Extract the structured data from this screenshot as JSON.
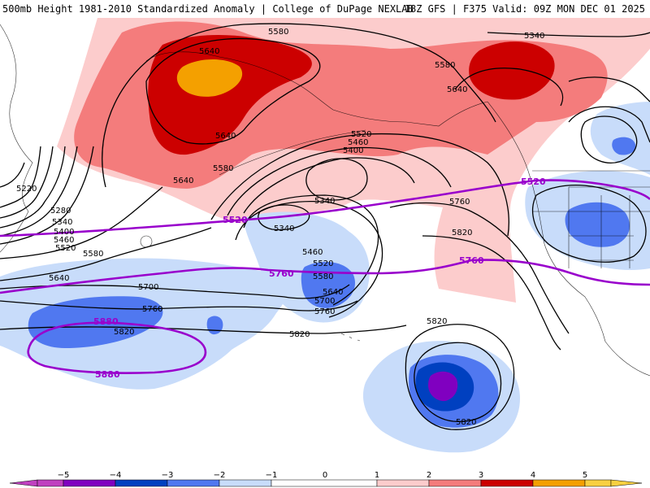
{
  "header": {
    "left": "500mb Height 1981-2010 Standardized Anomaly | College of DuPage NEXLAB",
    "right": "18Z GFS | F375 Valid: 09Z MON DEC 01 2025"
  },
  "colors": {
    "anom_neg5": "#c040c0",
    "anom_neg4": "#8000c0",
    "anom_neg3": "#0040c0",
    "anom_neg2": "#5078f0",
    "anom_neg1": "#c8dcfa",
    "anom_pos1": "#fccccc",
    "anom_pos2": "#f47c7c",
    "anom_pos3": "#cc0000",
    "anom_pos4": "#f4a000",
    "contour_black": "#000000",
    "contour_purple": "#9900cc"
  },
  "legend": {
    "ticks": [
      "−5",
      "−4",
      "−3",
      "−2",
      "−1",
      "0",
      "1",
      "2",
      "3",
      "4",
      "5"
    ]
  },
  "contour_labels_black": {
    "c5580_top": "5580",
    "c5340_ne": "5340",
    "c5640_ak_a": "5640",
    "c5640_ak_b": "5640",
    "c5580_mid": "5580",
    "c5640_e": "5640",
    "c5520_al": "5520",
    "c5460_al": "5460",
    "c5400_al": "5400",
    "c5580_al": "5580",
    "c5640_w": "5640",
    "c5220": "5220",
    "c5280": "5280",
    "c5340_w": "5340",
    "c5400_w": "5400",
    "c5460_w": "5460",
    "c5520_w": "5520",
    "c5580_w": "5580",
    "c5640_sw": "5640",
    "c5700_w": "5700",
    "c5760_w": "5760",
    "c5820_w": "5820",
    "c5340_low": "5340",
    "c5340_low2": "5340",
    "c5460_low": "5460",
    "c5520_low": "5520",
    "c5580_low": "5580",
    "c5640_low": "5640",
    "c5700_low": "5700",
    "c5760_low": "5760",
    "c5820_mid": "5820",
    "c5760_e": "5760",
    "c5820_e": "5820",
    "c5820_hi_top": "5820",
    "c5820_hi_bot": "5820"
  },
  "contour_labels_purple": {
    "p5520_mid": "5520",
    "p5520_e": "5520",
    "p5760_mid": "5760",
    "p5760_e": "5760",
    "p5880_top": "5880",
    "p5880_bot": "5880"
  }
}
